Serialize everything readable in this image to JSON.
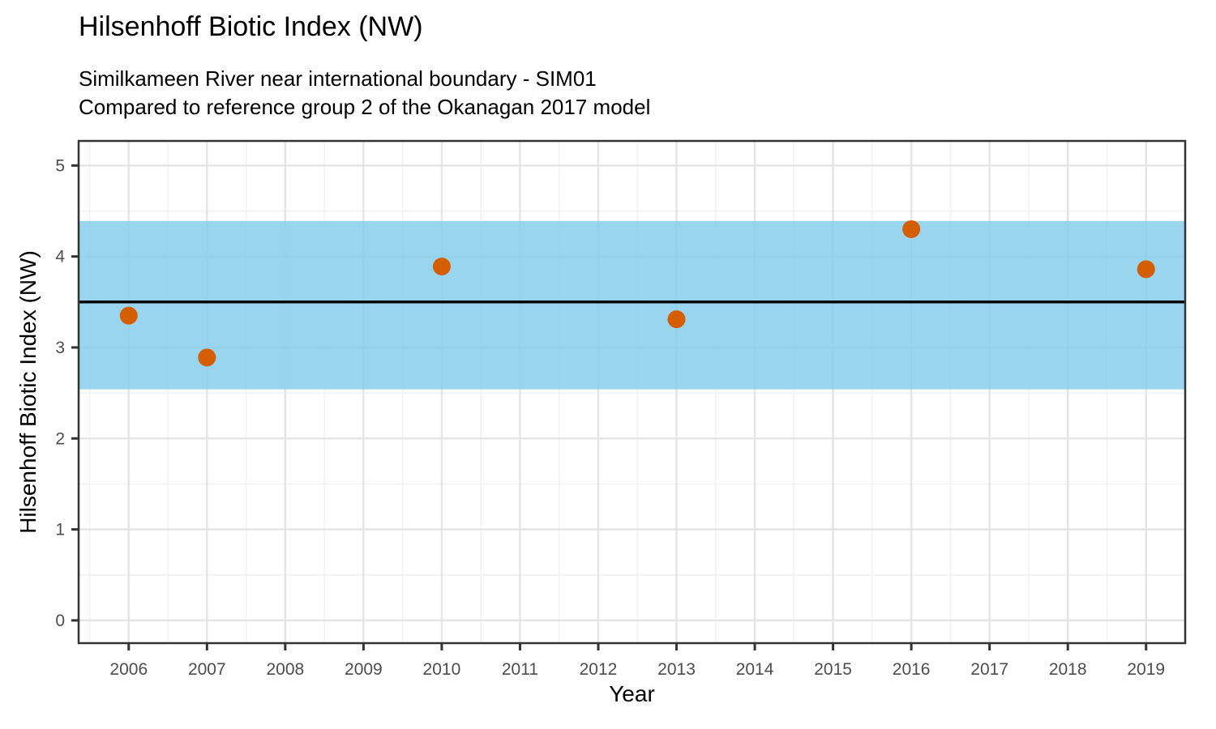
{
  "chart_data": {
    "type": "scatter",
    "title": "Hilsenhoff Biotic Index (NW)",
    "subtitle1": "Similkameen River near international boundary - SIM01",
    "subtitle2": "Compared to reference group 2 of the Okanagan 2017 model",
    "xlabel": "Year",
    "ylabel": "Hilsenhoff Biotic Index (NW)",
    "points": {
      "x": [
        2006,
        2007,
        2010,
        2013,
        2016,
        2019
      ],
      "y": [
        3.35,
        2.89,
        3.89,
        3.31,
        4.3,
        3.86
      ]
    },
    "reference_band": {
      "lower": 2.54,
      "upper": 4.39
    },
    "reference_line": 3.5,
    "x_ticks": [
      2006,
      2007,
      2008,
      2009,
      2010,
      2011,
      2012,
      2013,
      2014,
      2015,
      2016,
      2017,
      2018,
      2019
    ],
    "y_ticks": [
      0,
      1,
      2,
      3,
      4,
      5
    ],
    "xlim": [
      2005.36,
      2019.5
    ],
    "ylim": [
      -0.25,
      5.27
    ],
    "grid": {
      "major": true,
      "minor": true
    },
    "legend_position": "none",
    "colors": {
      "point": "#D55E00",
      "band": "#87CEEB",
      "band_opacity": "0.85",
      "reference_line": "#000000",
      "grid_major": "#E4E4E4",
      "grid_minor": "#F1F1F1",
      "panel_border": "#333333",
      "tick_mark": "#333333",
      "tick_label": "#4D4D4D",
      "panel_background": "#FFFFFF"
    }
  }
}
